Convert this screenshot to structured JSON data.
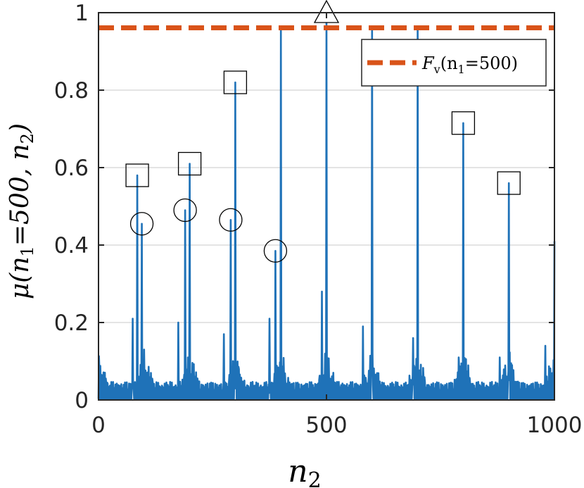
{
  "chart_data": {
    "type": "line",
    "title": "",
    "xlabel": "n",
    "xlabel_sub": "2",
    "ylabel": "μ(n",
    "ylabel_sub": "1",
    "ylabel_rest": "=500, n",
    "ylabel_sub2": "2",
    "ylabel_end": ")",
    "xlim": [
      0,
      1000
    ],
    "ylim": [
      0,
      1
    ],
    "xticks": [
      0,
      500,
      1000
    ],
    "xtick_labels": [
      "0",
      "500",
      "1000"
    ],
    "yticks": [
      0,
      0.2,
      0.4,
      0.6,
      0.8,
      1
    ],
    "ytick_labels": [
      "0",
      "0.2",
      "0.4",
      "0.6",
      "0.8",
      "1"
    ],
    "grid": true,
    "legend_position": "top-right",
    "colors": {
      "series": "#1f72b8",
      "threshold": "#d95319",
      "grid": "#dcdcdc",
      "axis": "#262626"
    },
    "series": [
      {
        "name": "",
        "peaks": [
          {
            "x": 75,
            "y": 0.21
          },
          {
            "x": 85,
            "y": 0.58
          },
          {
            "x": 95,
            "y": 0.455
          },
          {
            "x": 175,
            "y": 0.2
          },
          {
            "x": 190,
            "y": 0.49
          },
          {
            "x": 200,
            "y": 0.61
          },
          {
            "x": 275,
            "y": 0.17
          },
          {
            "x": 290,
            "y": 0.465
          },
          {
            "x": 300,
            "y": 0.82
          },
          {
            "x": 375,
            "y": 0.21
          },
          {
            "x": 388,
            "y": 0.385
          },
          {
            "x": 400,
            "y": 0.955
          },
          {
            "x": 490,
            "y": 0.28
          },
          {
            "x": 500,
            "y": 1.0
          },
          {
            "x": 580,
            "y": 0.19
          },
          {
            "x": 600,
            "y": 0.96
          },
          {
            "x": 690,
            "y": 0.16
          },
          {
            "x": 700,
            "y": 0.96
          },
          {
            "x": 790,
            "y": 0.11
          },
          {
            "x": 800,
            "y": 0.715
          },
          {
            "x": 880,
            "y": 0.11
          },
          {
            "x": 900,
            "y": 0.56
          },
          {
            "x": 980,
            "y": 0.14
          },
          {
            "x": 1000,
            "y": 0.41
          }
        ]
      }
    ],
    "threshold": {
      "name": "F",
      "name_sub": "v",
      "name_args": "(n",
      "name_args_sub": "1",
      "name_args_end": "=500)",
      "y": 0.961
    },
    "markers": {
      "squares": [
        {
          "x": 85,
          "y": 0.58
        },
        {
          "x": 200,
          "y": 0.61
        },
        {
          "x": 300,
          "y": 0.82
        },
        {
          "x": 800,
          "y": 0.715
        },
        {
          "x": 900,
          "y": 0.56
        }
      ],
      "circles": [
        {
          "x": 95,
          "y": 0.455
        },
        {
          "x": 190,
          "y": 0.49
        },
        {
          "x": 290,
          "y": 0.465
        },
        {
          "x": 388,
          "y": 0.385
        }
      ],
      "triangles": [
        {
          "x": 500,
          "y": 1.0
        }
      ]
    }
  }
}
